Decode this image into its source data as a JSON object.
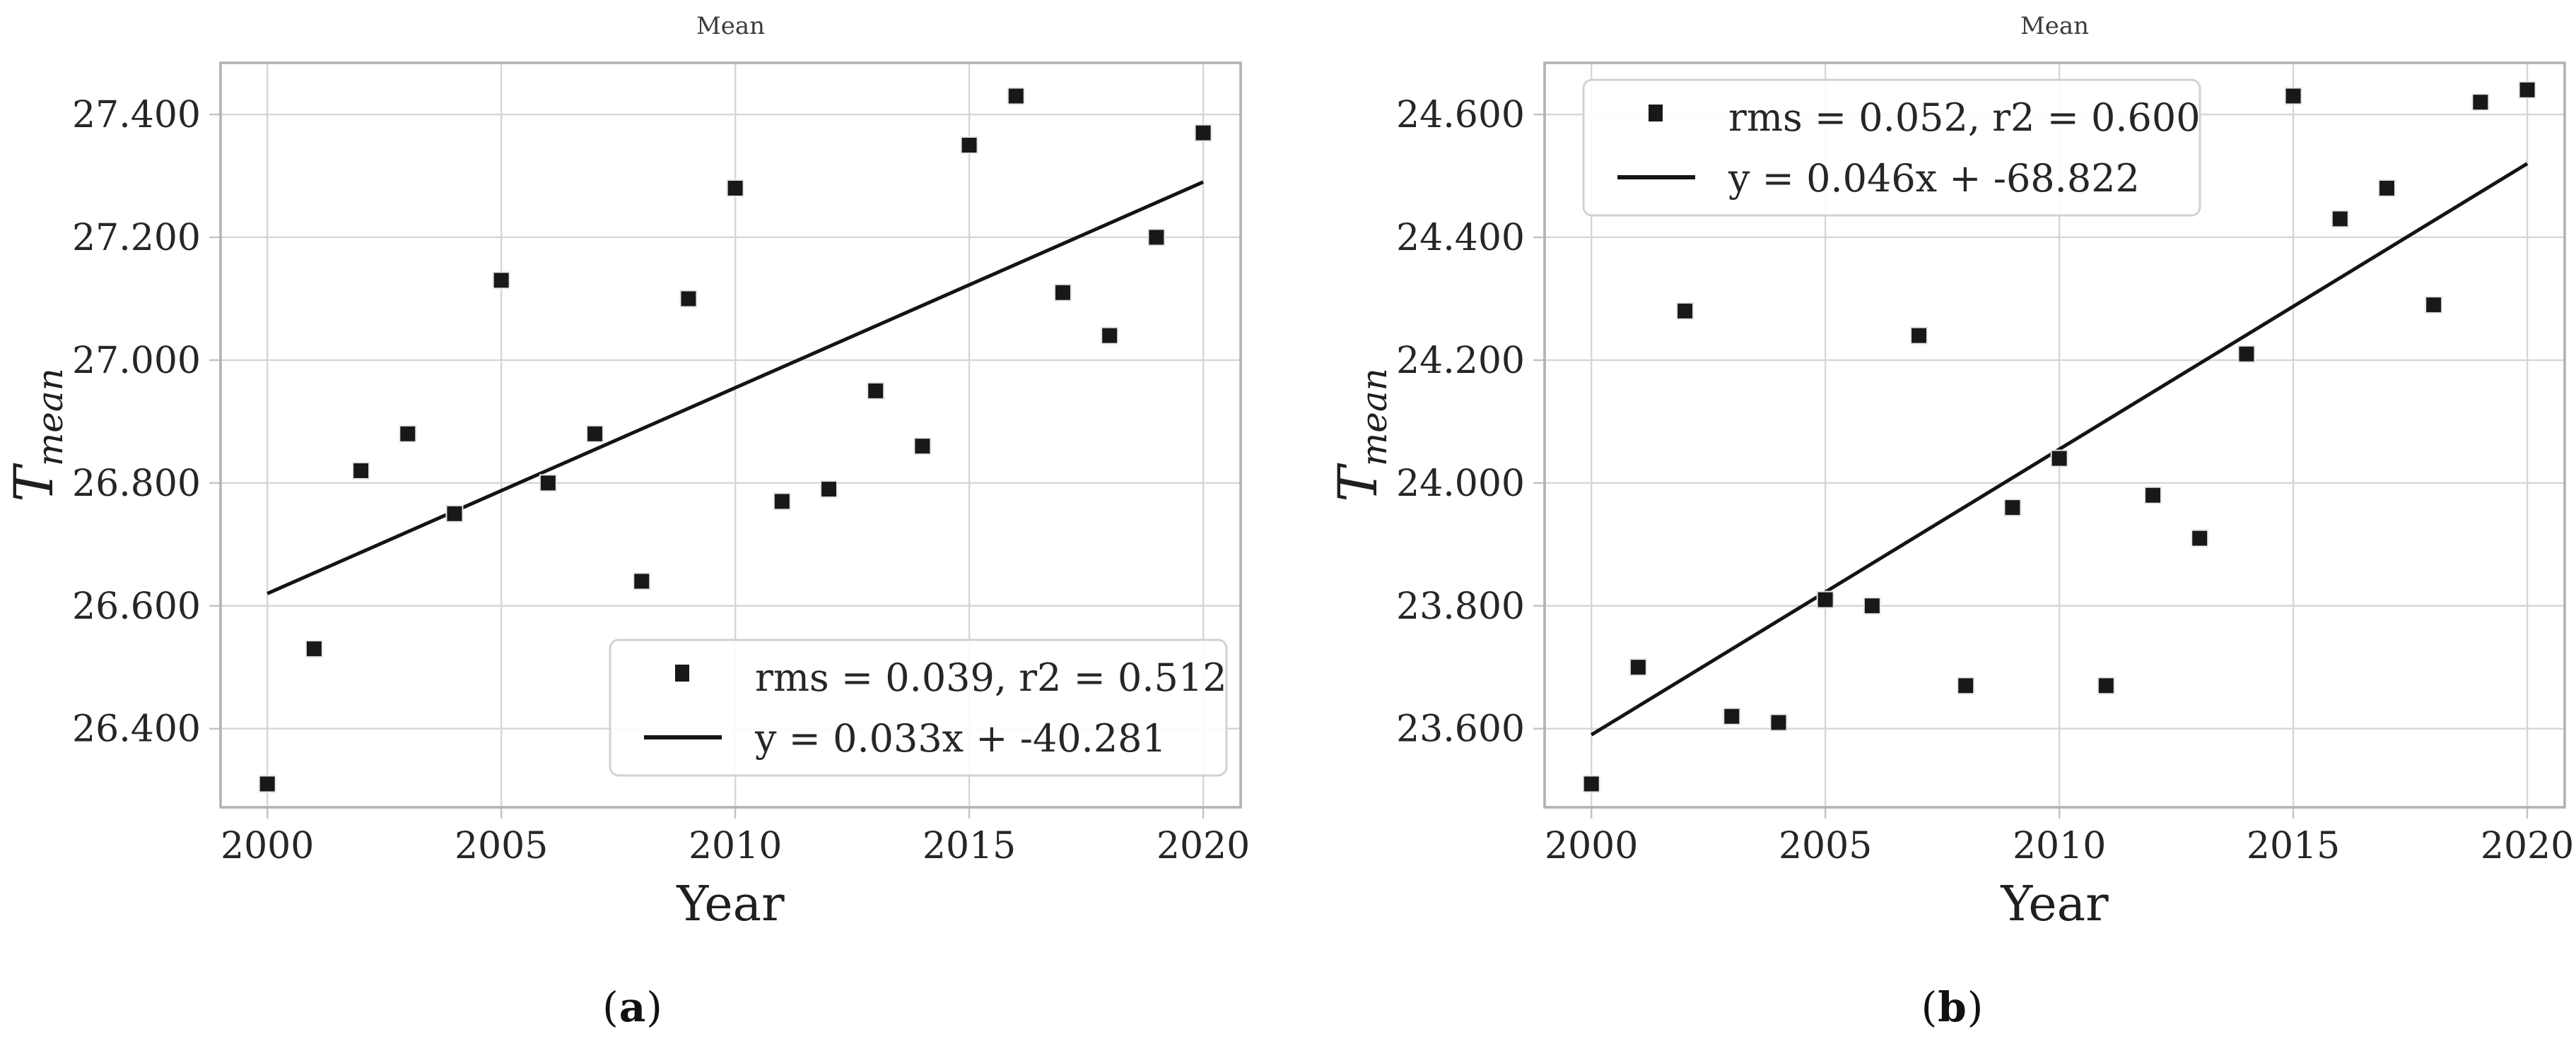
{
  "figure": {
    "background": "#ffffff",
    "colors": {
      "marker": "#181818",
      "trend_line": "#141414",
      "grid": "#d6d6d6",
      "spine": "#b2b2b2",
      "tick": "#c2c2c2",
      "title_text": "#3c3c3c",
      "label_text": "#1f1f1f",
      "tick_text": "#262626",
      "legend_border": "#d2d2d2",
      "legend_bg": "#ffffff"
    },
    "captions": [
      {
        "open": "(",
        "letter": "a",
        "close": ")"
      },
      {
        "open": "(",
        "letter": "b",
        "close": ")"
      }
    ]
  },
  "chart_data": [
    {
      "type": "scatter",
      "title": "Mean",
      "xlabel": "Year",
      "ylabel": "T_mean",
      "ylabel_main": "T",
      "ylabel_sub": "mean",
      "xlim": [
        1999.0,
        2020.8
      ],
      "ylim": [
        26.272,
        27.484
      ],
      "x_tick_values": [
        2000,
        2005,
        2010,
        2015,
        2020
      ],
      "x_tick_labels": [
        "2000",
        "2005",
        "2010",
        "2015",
        "2020"
      ],
      "y_tick_values": [
        27.4,
        27.2,
        27.0,
        26.8,
        26.6,
        26.4
      ],
      "y_tick_labels": [
        "27.400",
        "27.200",
        "27.000",
        "26.800",
        "26.600",
        "26.400"
      ],
      "x": [
        2000,
        2001,
        2002,
        2003,
        2004,
        2005,
        2006,
        2007,
        2008,
        2009,
        2010,
        2011,
        2012,
        2013,
        2014,
        2015,
        2016,
        2017,
        2018,
        2019,
        2020
      ],
      "y": [
        26.31,
        26.53,
        26.82,
        26.88,
        26.75,
        27.13,
        26.8,
        26.88,
        26.64,
        27.1,
        27.28,
        26.77,
        26.79,
        26.95,
        26.86,
        27.35,
        27.43,
        27.11,
        27.04,
        27.2,
        27.37
      ],
      "trend": {
        "x": [
          2000,
          2020
        ],
        "y": [
          26.62,
          27.29
        ]
      },
      "legend": {
        "position": "lower-right",
        "scatter_label": "rms = 0.039, r2 = 0.512",
        "line_label": "y = 0.033x + -40.281"
      },
      "grid": true
    },
    {
      "type": "scatter",
      "title": "Mean",
      "xlabel": "Year",
      "ylabel": "T_mean",
      "ylabel_main": "T",
      "ylabel_sub": "mean",
      "xlim": [
        1999.0,
        2020.8
      ],
      "ylim": [
        23.472,
        24.684
      ],
      "x_tick_values": [
        2000,
        2005,
        2010,
        2015,
        2020
      ],
      "x_tick_labels": [
        "2000",
        "2005",
        "2010",
        "2015",
        "2020"
      ],
      "y_tick_values": [
        24.6,
        24.4,
        24.2,
        24.0,
        23.8,
        23.6
      ],
      "y_tick_labels": [
        "24.600",
        "24.400",
        "24.200",
        "24.000",
        "23.800",
        "23.600"
      ],
      "x": [
        2000,
        2001,
        2002,
        2003,
        2004,
        2005,
        2006,
        2007,
        2008,
        2009,
        2010,
        2011,
        2012,
        2013,
        2014,
        2015,
        2016,
        2017,
        2018,
        2019,
        2020
      ],
      "y": [
        23.51,
        23.7,
        24.28,
        23.62,
        23.61,
        23.81,
        23.8,
        24.24,
        23.67,
        23.96,
        24.04,
        23.67,
        23.98,
        23.91,
        24.21,
        24.63,
        24.43,
        24.48,
        24.29,
        24.62,
        24.64
      ],
      "trend": {
        "x": [
          2000,
          2020
        ],
        "y": [
          23.59,
          24.52
        ]
      },
      "legend": {
        "position": "upper-left",
        "scatter_label": "rms = 0.052, r2 = 0.600",
        "line_label": "y = 0.046x + -68.822"
      },
      "grid": true
    }
  ]
}
